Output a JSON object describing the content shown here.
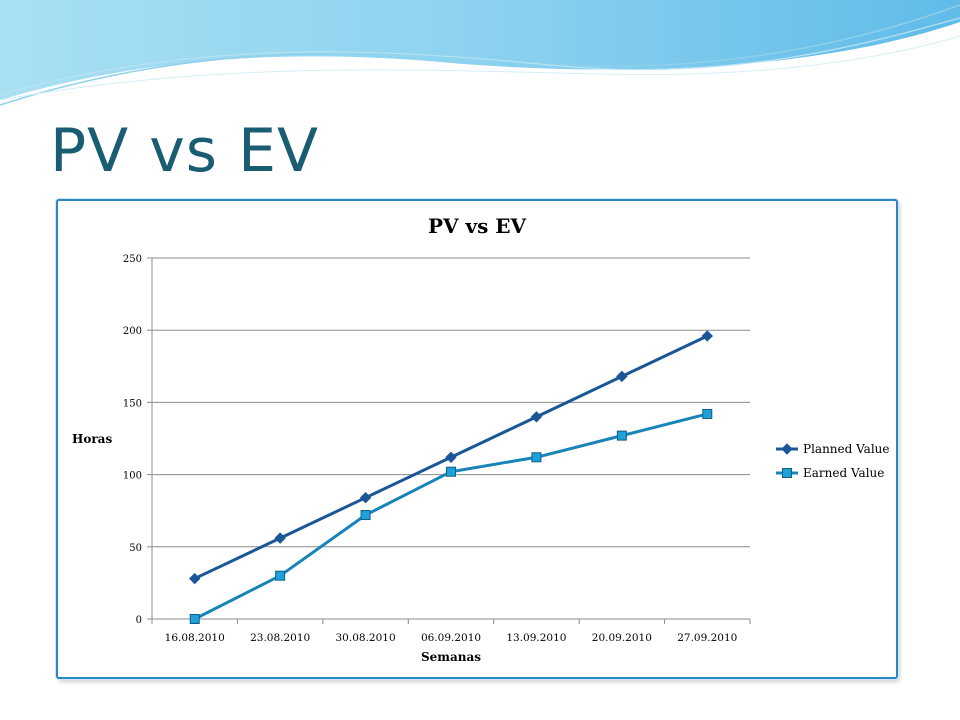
{
  "slide": {
    "title": "PV vs EV"
  },
  "colors": {
    "title": "#1a5d73",
    "frame": "#2b86c6",
    "planned": "#1b5797",
    "earned": "#1884b7",
    "earned_fill": "#1ea0db",
    "grid": "#8c8c8c"
  },
  "chart_data": {
    "type": "line",
    "title": "PV vs EV",
    "xlabel": "Semanas",
    "ylabel": "Horas",
    "categories": [
      "16.08.2010",
      "23.08.2010",
      "30.08.2010",
      "06.09.2010",
      "13.09.2010",
      "20.09.2010",
      "27.09.2010"
    ],
    "ylim": [
      0,
      250
    ],
    "yticks": [
      0,
      50,
      100,
      150,
      200,
      250
    ],
    "grid": true,
    "legend_position": "right",
    "series": [
      {
        "name": "Planned Value",
        "marker": "diamond",
        "values": [
          28,
          56,
          84,
          112,
          140,
          168,
          196
        ]
      },
      {
        "name": "Earned Value",
        "marker": "square",
        "values": [
          0,
          30,
          72,
          102,
          112,
          127,
          142
        ]
      }
    ]
  }
}
